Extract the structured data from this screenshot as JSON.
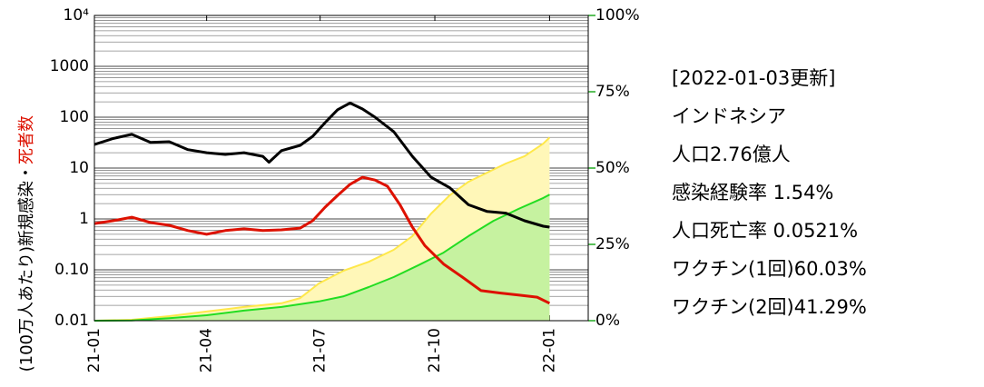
{
  "chart_data": {
    "type": "line",
    "ylabel": "(100万人あたり)新規感染・",
    "ylabel_red": "死者数",
    "yscale": "log",
    "grid": true,
    "xlim": [
      0,
      396
    ],
    "xticks": [
      {
        "value": 0,
        "label": "21-01"
      },
      {
        "value": 90,
        "label": "21-04"
      },
      {
        "value": 181,
        "label": "21-07"
      },
      {
        "value": 273,
        "label": "21-10"
      },
      {
        "value": 365,
        "label": "22-01"
      }
    ],
    "ylim": [
      0.01,
      10000
    ],
    "yticks": [
      {
        "value": 0.01,
        "label": "0.01"
      },
      {
        "value": 0.1,
        "label": "0.10"
      },
      1,
      10,
      100,
      1000,
      {
        "value": 10000,
        "label": "10⁴"
      }
    ],
    "y2lim": [
      0,
      100
    ],
    "y2ticks": [
      {
        "value": 0,
        "label": "0%"
      },
      {
        "value": 25,
        "label": "25%"
      },
      {
        "value": 50,
        "label": "50%"
      },
      {
        "value": 75,
        "label": "75%"
      },
      {
        "value": 100,
        "label": "100%"
      }
    ],
    "y2color": "#22aa22",
    "series": [
      {
        "name": "ワクチン(1回)",
        "color": "#ffe84a",
        "fill": "#fff7b8",
        "axis": "y2",
        "x": [
          0,
          30,
          60,
          90,
          120,
          150,
          165,
          180,
          200,
          220,
          240,
          255,
          270,
          285,
          300,
          315,
          330,
          345,
          360,
          365
        ],
        "values": [
          0,
          0.3,
          1.5,
          3,
          4.5,
          5.7,
          7.4,
          12.2,
          16.4,
          19.3,
          23.2,
          27.7,
          35.1,
          41.1,
          45.5,
          48.5,
          51.5,
          53.9,
          58,
          60.03
        ]
      },
      {
        "name": "ワクチン(2回)",
        "color": "#22dd22",
        "fill": "#c6f2a0",
        "axis": "y2",
        "x": [
          0,
          30,
          60,
          90,
          120,
          150,
          180,
          200,
          220,
          240,
          260,
          280,
          300,
          320,
          340,
          360,
          365
        ],
        "values": [
          0,
          0.1,
          0.8,
          1.8,
          3.3,
          4.5,
          6.3,
          8,
          11,
          14.3,
          18.2,
          22.3,
          27.7,
          32.7,
          36.6,
          40.2,
          41.29
        ]
      },
      {
        "name": "新規感染",
        "color": "#000000",
        "x": [
          0,
          15,
          30,
          45,
          60,
          75,
          90,
          105,
          120,
          135,
          140,
          150,
          165,
          175,
          185,
          195,
          205,
          215,
          225,
          240,
          255,
          270,
          285,
          300,
          315,
          330,
          345,
          360,
          365
        ],
        "values": [
          29,
          38,
          46,
          32,
          33,
          23,
          20,
          18.5,
          20,
          17,
          13,
          22,
          28,
          42,
          78,
          140,
          190,
          145,
          100,
          52,
          17,
          6.6,
          4.1,
          1.9,
          1.4,
          1.3,
          0.92,
          0.72,
          0.69
        ]
      },
      {
        "name": "死者数",
        "color": "#dd1100",
        "x": [
          0,
          15,
          30,
          45,
          60,
          75,
          90,
          105,
          120,
          135,
          150,
          165,
          175,
          185,
          195,
          205,
          215,
          225,
          235,
          245,
          255,
          265,
          280,
          295,
          310,
          325,
          340,
          355,
          365
        ],
        "values": [
          0.81,
          0.92,
          1.08,
          0.85,
          0.75,
          0.59,
          0.5,
          0.59,
          0.64,
          0.59,
          0.61,
          0.66,
          0.92,
          1.7,
          2.9,
          4.8,
          6.6,
          5.8,
          4.4,
          1.9,
          0.69,
          0.3,
          0.13,
          0.072,
          0.039,
          0.035,
          0.032,
          0.029,
          0.022
        ]
      }
    ],
    "info": [
      "[2022-01-03更新]",
      "インドネシア",
      "人口2.76億人",
      "感染経験率 1.54%",
      "人口死亡率 0.0521%",
      "ワクチン(1回)60.03%",
      "ワクチン(2回)41.29%"
    ]
  }
}
